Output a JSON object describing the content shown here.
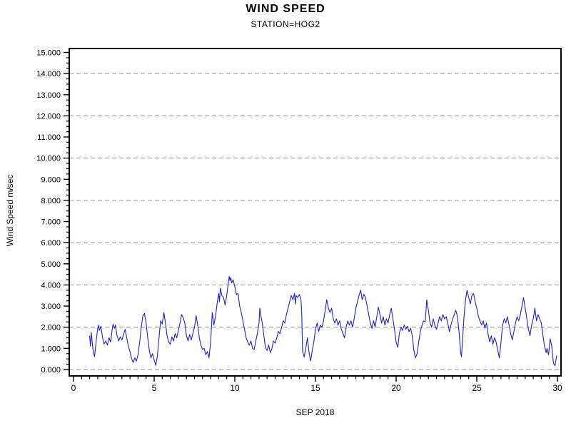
{
  "header": {
    "title": "WIND SPEED",
    "subtitle": "STATION=HOG2"
  },
  "chart_data": {
    "type": "line",
    "title": "WIND SPEED",
    "subtitle": "STATION=HOG2",
    "xlabel": "SEP 2018",
    "ylabel": "Wind Speed m/sec",
    "xlim": [
      0,
      30
    ],
    "ylim": [
      0,
      15
    ],
    "grid": "dashed horizontal at every 2 units",
    "grid_values": [
      0,
      2,
      4,
      6,
      8,
      10,
      12,
      14
    ],
    "x_ticks": {
      "values": [
        0,
        5,
        10,
        15,
        20,
        25,
        30
      ],
      "labels": [
        "0",
        "5",
        "10",
        "15",
        "20",
        "25",
        "30"
      ],
      "minor_step": 0.5
    },
    "y_ticks": {
      "values": [
        0,
        1,
        2,
        3,
        4,
        5,
        6,
        7,
        8,
        9,
        10,
        11,
        12,
        13,
        14,
        15
      ],
      "labels": [
        "0.000",
        "1.000",
        "2.000",
        "3.000",
        "4.000",
        "5.000",
        "6.000",
        "7.000",
        "8.000",
        "9.000",
        "10.000",
        "11.000",
        "12.000",
        "13.000",
        "14.000",
        "15.000"
      ],
      "minor_step": 0.25
    },
    "colors": {
      "line": "#2222CE",
      "grid": "#8c8c8c",
      "axis": "#000000"
    },
    "legend": "none",
    "series": [
      {
        "name": "wind speed",
        "points": [
          [
            1.0,
            1.6
          ],
          [
            1.05,
            1.1
          ],
          [
            1.1,
            1.75
          ],
          [
            1.2,
            1.0
          ],
          [
            1.3,
            0.6
          ],
          [
            1.4,
            1.3
          ],
          [
            1.5,
            1.95
          ],
          [
            1.55,
            2.1
          ],
          [
            1.6,
            1.85
          ],
          [
            1.7,
            2.05
          ],
          [
            1.8,
            1.5
          ],
          [
            1.9,
            1.2
          ],
          [
            2.0,
            1.35
          ],
          [
            2.1,
            1.15
          ],
          [
            2.2,
            1.5
          ],
          [
            2.3,
            1.3
          ],
          [
            2.4,
            1.9
          ],
          [
            2.45,
            2.15
          ],
          [
            2.55,
            1.95
          ],
          [
            2.6,
            2.1
          ],
          [
            2.7,
            1.6
          ],
          [
            2.8,
            1.35
          ],
          [
            2.9,
            1.55
          ],
          [
            3.0,
            1.4
          ],
          [
            3.1,
            1.65
          ],
          [
            3.2,
            1.9
          ],
          [
            3.3,
            1.5
          ],
          [
            3.4,
            1.1
          ],
          [
            3.5,
            0.85
          ],
          [
            3.6,
            0.5
          ],
          [
            3.7,
            0.33
          ],
          [
            3.8,
            0.55
          ],
          [
            3.9,
            0.4
          ],
          [
            4.0,
            0.7
          ],
          [
            4.1,
            1.3
          ],
          [
            4.2,
            2.0
          ],
          [
            4.3,
            2.55
          ],
          [
            4.4,
            2.65
          ],
          [
            4.5,
            2.2
          ],
          [
            4.6,
            1.5
          ],
          [
            4.7,
            0.9
          ],
          [
            4.8,
            0.55
          ],
          [
            4.9,
            0.75
          ],
          [
            5.0,
            0.45
          ],
          [
            5.1,
            0.2
          ],
          [
            5.2,
            0.65
          ],
          [
            5.3,
            1.5
          ],
          [
            5.4,
            2.3
          ],
          [
            5.5,
            2.15
          ],
          [
            5.6,
            2.7
          ],
          [
            5.7,
            2.2
          ],
          [
            5.8,
            1.6
          ],
          [
            5.9,
            1.3
          ],
          [
            6.0,
            1.2
          ],
          [
            6.1,
            1.55
          ],
          [
            6.2,
            1.35
          ],
          [
            6.3,
            1.7
          ],
          [
            6.4,
            1.5
          ],
          [
            6.5,
            1.85
          ],
          [
            6.6,
            2.2
          ],
          [
            6.7,
            2.6
          ],
          [
            6.8,
            2.45
          ],
          [
            6.9,
            2.2
          ],
          [
            7.0,
            1.6
          ],
          [
            7.1,
            1.35
          ],
          [
            7.2,
            1.65
          ],
          [
            7.3,
            1.4
          ],
          [
            7.4,
            1.7
          ],
          [
            7.5,
            2.0
          ],
          [
            7.6,
            2.55
          ],
          [
            7.7,
            2.1
          ],
          [
            7.8,
            1.5
          ],
          [
            7.9,
            1.15
          ],
          [
            8.0,
            0.95
          ],
          [
            8.1,
            1.0
          ],
          [
            8.2,
            0.7
          ],
          [
            8.3,
            0.85
          ],
          [
            8.4,
            0.55
          ],
          [
            8.5,
            1.3
          ],
          [
            8.6,
            2.7
          ],
          [
            8.7,
            2.1
          ],
          [
            8.8,
            2.5
          ],
          [
            8.9,
            3.1
          ],
          [
            9.0,
            3.6
          ],
          [
            9.05,
            3.2
          ],
          [
            9.1,
            3.85
          ],
          [
            9.2,
            3.5
          ],
          [
            9.3,
            3.4
          ],
          [
            9.4,
            3.05
          ],
          [
            9.5,
            3.5
          ],
          [
            9.6,
            4.15
          ],
          [
            9.65,
            4.4
          ],
          [
            9.7,
            4.2
          ],
          [
            9.75,
            4.35
          ],
          [
            9.8,
            4.1
          ],
          [
            9.9,
            4.25
          ],
          [
            10.0,
            3.9
          ],
          [
            10.1,
            3.55
          ],
          [
            10.2,
            3.6
          ],
          [
            10.3,
            3.0
          ],
          [
            10.4,
            2.7
          ],
          [
            10.5,
            2.3
          ],
          [
            10.6,
            1.9
          ],
          [
            10.7,
            1.5
          ],
          [
            10.8,
            1.3
          ],
          [
            10.9,
            1.15
          ],
          [
            11.0,
            1.35
          ],
          [
            11.1,
            1.0
          ],
          [
            11.2,
            0.95
          ],
          [
            11.3,
            1.35
          ],
          [
            11.4,
            1.7
          ],
          [
            11.5,
            2.2
          ],
          [
            11.55,
            2.9
          ],
          [
            11.6,
            2.6
          ],
          [
            11.7,
            2.2
          ],
          [
            11.8,
            1.6
          ],
          [
            11.9,
            1.05
          ],
          [
            12.0,
            0.9
          ],
          [
            12.1,
            1.15
          ],
          [
            12.2,
            0.8
          ],
          [
            12.3,
            1.0
          ],
          [
            12.4,
            1.35
          ],
          [
            12.5,
            1.25
          ],
          [
            12.6,
            1.5
          ],
          [
            12.7,
            1.8
          ],
          [
            12.8,
            1.7
          ],
          [
            12.9,
            2.0
          ],
          [
            13.0,
            2.3
          ],
          [
            13.1,
            2.2
          ],
          [
            13.2,
            2.6
          ],
          [
            13.3,
            2.9
          ],
          [
            13.4,
            3.2
          ],
          [
            13.5,
            3.5
          ],
          [
            13.6,
            3.3
          ],
          [
            13.7,
            3.6
          ],
          [
            13.75,
            3.1
          ],
          [
            13.8,
            3.5
          ],
          [
            13.9,
            3.4
          ],
          [
            14.0,
            3.55
          ],
          [
            14.1,
            3.3
          ],
          [
            14.15,
            2.6
          ],
          [
            14.2,
            0.85
          ],
          [
            14.3,
            0.6
          ],
          [
            14.4,
            1.0
          ],
          [
            14.5,
            1.5
          ],
          [
            14.6,
            0.8
          ],
          [
            14.7,
            0.4
          ],
          [
            14.8,
            0.9
          ],
          [
            14.9,
            1.3
          ],
          [
            15.0,
            1.9
          ],
          [
            15.1,
            2.2
          ],
          [
            15.2,
            1.8
          ],
          [
            15.3,
            2.1
          ],
          [
            15.4,
            2.0
          ],
          [
            15.5,
            2.3
          ],
          [
            15.6,
            2.8
          ],
          [
            15.7,
            3.3
          ],
          [
            15.8,
            2.9
          ],
          [
            15.9,
            2.7
          ],
          [
            16.0,
            2.9
          ],
          [
            16.1,
            2.4
          ],
          [
            16.2,
            2.2
          ],
          [
            16.3,
            2.4
          ],
          [
            16.4,
            2.1
          ],
          [
            16.5,
            2.3
          ],
          [
            16.6,
            1.9
          ],
          [
            16.7,
            1.7
          ],
          [
            16.8,
            1.5
          ],
          [
            16.9,
            2.0
          ],
          [
            17.0,
            2.3
          ],
          [
            17.1,
            2.1
          ],
          [
            17.2,
            2.3
          ],
          [
            17.3,
            2.0
          ],
          [
            17.4,
            2.4
          ],
          [
            17.5,
            2.9
          ],
          [
            17.6,
            3.2
          ],
          [
            17.7,
            3.5
          ],
          [
            17.8,
            3.75
          ],
          [
            17.9,
            3.3
          ],
          [
            18.0,
            3.55
          ],
          [
            18.1,
            3.4
          ],
          [
            18.2,
            3.0
          ],
          [
            18.3,
            2.6
          ],
          [
            18.4,
            2.2
          ],
          [
            18.5,
            1.95
          ],
          [
            18.6,
            2.3
          ],
          [
            18.7,
            2.0
          ],
          [
            18.8,
            2.5
          ],
          [
            18.9,
            2.95
          ],
          [
            19.0,
            2.6
          ],
          [
            19.1,
            2.2
          ],
          [
            19.2,
            2.5
          ],
          [
            19.3,
            2.1
          ],
          [
            19.4,
            2.4
          ],
          [
            19.5,
            2.2
          ],
          [
            19.6,
            2.6
          ],
          [
            19.7,
            2.9
          ],
          [
            19.8,
            2.4
          ],
          [
            19.9,
            1.9
          ],
          [
            20.0,
            1.3
          ],
          [
            20.1,
            1.05
          ],
          [
            20.2,
            1.7
          ],
          [
            20.3,
            2.0
          ],
          [
            20.4,
            1.85
          ],
          [
            20.5,
            2.1
          ],
          [
            20.6,
            1.9
          ],
          [
            20.7,
            2.05
          ],
          [
            20.8,
            1.8
          ],
          [
            20.9,
            1.95
          ],
          [
            21.0,
            1.6
          ],
          [
            21.1,
            0.9
          ],
          [
            21.2,
            0.55
          ],
          [
            21.3,
            0.75
          ],
          [
            21.4,
            1.3
          ],
          [
            21.5,
            1.8
          ],
          [
            21.6,
            2.1
          ],
          [
            21.7,
            2.3
          ],
          [
            21.8,
            2.25
          ],
          [
            21.9,
            3.3
          ],
          [
            22.0,
            2.8
          ],
          [
            22.1,
            2.2
          ],
          [
            22.2,
            2.0
          ],
          [
            22.3,
            2.4
          ],
          [
            22.4,
            2.1
          ],
          [
            22.5,
            1.9
          ],
          [
            22.6,
            2.2
          ],
          [
            22.7,
            2.5
          ],
          [
            22.8,
            2.3
          ],
          [
            22.9,
            2.6
          ],
          [
            23.0,
            2.4
          ],
          [
            23.1,
            2.5
          ],
          [
            23.2,
            2.2
          ],
          [
            23.3,
            1.8
          ],
          [
            23.4,
            2.1
          ],
          [
            23.5,
            2.4
          ],
          [
            23.6,
            2.6
          ],
          [
            23.7,
            2.8
          ],
          [
            23.8,
            2.5
          ],
          [
            23.9,
            1.8
          ],
          [
            24.0,
            0.8
          ],
          [
            24.05,
            0.6
          ],
          [
            24.1,
            1.2
          ],
          [
            24.2,
            2.4
          ],
          [
            24.3,
            3.3
          ],
          [
            24.4,
            3.75
          ],
          [
            24.5,
            3.4
          ],
          [
            24.6,
            3.1
          ],
          [
            24.7,
            3.5
          ],
          [
            24.8,
            3.6
          ],
          [
            24.9,
            3.2
          ],
          [
            25.0,
            2.9
          ],
          [
            25.1,
            2.5
          ],
          [
            25.2,
            2.3
          ],
          [
            25.3,
            2.1
          ],
          [
            25.4,
            2.3
          ],
          [
            25.5,
            1.95
          ],
          [
            25.6,
            2.2
          ],
          [
            25.7,
            1.7
          ],
          [
            25.8,
            1.3
          ],
          [
            25.9,
            1.6
          ],
          [
            26.0,
            1.2
          ],
          [
            26.1,
            1.5
          ],
          [
            26.2,
            1.3
          ],
          [
            26.3,
            0.9
          ],
          [
            26.4,
            0.55
          ],
          [
            26.5,
            1.3
          ],
          [
            26.6,
            2.1
          ],
          [
            26.7,
            2.4
          ],
          [
            26.8,
            2.2
          ],
          [
            26.9,
            2.5
          ],
          [
            27.0,
            2.1
          ],
          [
            27.1,
            1.7
          ],
          [
            27.2,
            1.4
          ],
          [
            27.3,
            1.8
          ],
          [
            27.4,
            2.2
          ],
          [
            27.5,
            2.5
          ],
          [
            27.6,
            2.3
          ],
          [
            27.7,
            2.6
          ],
          [
            27.8,
            3.0
          ],
          [
            27.9,
            3.4
          ],
          [
            28.0,
            2.9
          ],
          [
            28.1,
            2.4
          ],
          [
            28.2,
            1.9
          ],
          [
            28.3,
            1.6
          ],
          [
            28.4,
            2.1
          ],
          [
            28.5,
            2.4
          ],
          [
            28.6,
            2.9
          ],
          [
            28.7,
            2.3
          ],
          [
            28.8,
            2.6
          ],
          [
            28.9,
            2.4
          ],
          [
            29.0,
            2.2
          ],
          [
            29.1,
            1.6
          ],
          [
            29.2,
            1.1
          ],
          [
            29.3,
            0.8
          ],
          [
            29.35,
            1.0
          ],
          [
            29.45,
            0.7
          ],
          [
            29.55,
            1.45
          ],
          [
            29.65,
            1.1
          ],
          [
            29.75,
            0.3
          ],
          [
            29.85,
            0.18
          ],
          [
            29.95,
            0.65
          ]
        ]
      }
    ]
  }
}
